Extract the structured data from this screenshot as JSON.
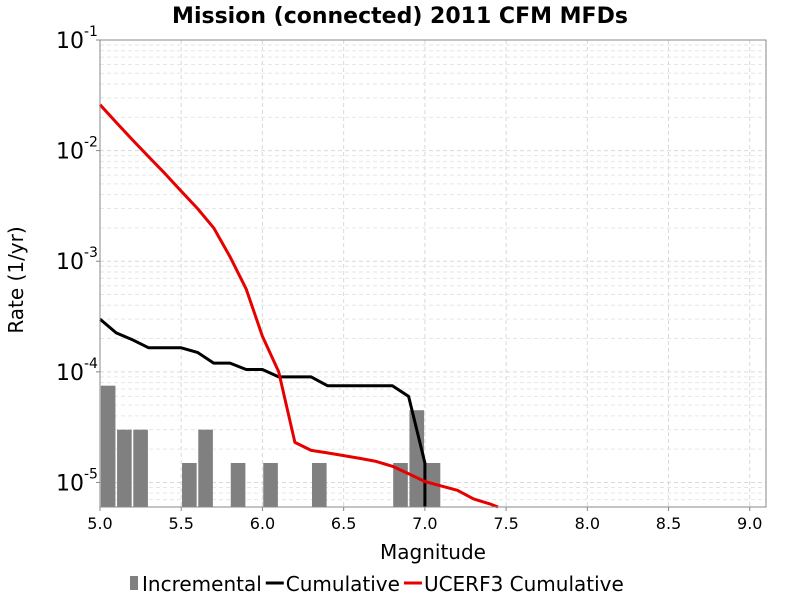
{
  "chart_data": {
    "type": "line",
    "title": "Mission (connected) 2011 CFM MFDs",
    "xlabel": "Magnitude",
    "ylabel": "Rate (1/yr)",
    "xlim": [
      5.0,
      9.1
    ],
    "ylim": [
      6e-06,
      0.1
    ],
    "y_scale": "log",
    "grid": true,
    "legend_position": "bottom",
    "x_ticks": [
      "5.0",
      "5.5",
      "6.0",
      "6.5",
      "7.0",
      "7.5",
      "8.0",
      "8.5",
      "9.0"
    ],
    "y_ticks": [
      {
        "base": "10",
        "exp": "-5",
        "value": 1e-05
      },
      {
        "base": "10",
        "exp": "-4",
        "value": 0.0001
      },
      {
        "base": "10",
        "exp": "-3",
        "value": 0.001
      },
      {
        "base": "10",
        "exp": "-2",
        "value": 0.01
      },
      {
        "base": "10",
        "exp": "-1",
        "value": 0.1
      }
    ],
    "series": [
      {
        "name": "Incremental",
        "kind": "bar",
        "color": "#808080",
        "bar_width": 0.09,
        "x": [
          5.05,
          5.15,
          5.25,
          5.55,
          5.65,
          5.85,
          6.05,
          6.35,
          6.85,
          6.95,
          7.05
        ],
        "y": [
          7.5e-05,
          3e-05,
          3e-05,
          1.5e-05,
          3e-05,
          1.5e-05,
          1.5e-05,
          1.5e-05,
          1.5e-05,
          4.5e-05,
          1.5e-05
        ]
      },
      {
        "name": "Cumulative",
        "kind": "line",
        "color": "#000000",
        "x": [
          5.0,
          5.1,
          5.2,
          5.3,
          5.4,
          5.5,
          5.6,
          5.7,
          5.8,
          5.9,
          6.0,
          6.1,
          6.2,
          6.3,
          6.4,
          6.5,
          6.6,
          6.7,
          6.8,
          6.9,
          7.0,
          7.0
        ],
        "y": [
          0.0003,
          0.000225,
          0.000195,
          0.000165,
          0.000165,
          0.000165,
          0.00015,
          0.00012,
          0.00012,
          0.000105,
          0.000105,
          9e-05,
          9e-05,
          9e-05,
          7.5e-05,
          7.5e-05,
          7.5e-05,
          7.5e-05,
          7.5e-05,
          6e-05,
          1.5e-05,
          6e-06
        ]
      },
      {
        "name": "UCERF3 Cumulative",
        "kind": "line",
        "color": "#e60000",
        "x": [
          5.0,
          5.1,
          5.2,
          5.3,
          5.4,
          5.5,
          5.6,
          5.7,
          5.8,
          5.9,
          6.0,
          6.1,
          6.2,
          6.3,
          6.4,
          6.5,
          6.6,
          6.7,
          6.8,
          6.9,
          7.0,
          7.1,
          7.2,
          7.3,
          7.4,
          7.45
        ],
        "y": [
          0.026,
          0.018,
          0.0125,
          0.0088,
          0.0062,
          0.0043,
          0.003,
          0.002,
          0.0011,
          0.00056,
          0.00021,
          0.0001,
          2.3e-05,
          1.95e-05,
          1.85e-05,
          1.75e-05,
          1.65e-05,
          1.55e-05,
          1.4e-05,
          1.2e-05,
          1.02e-05,
          9.3e-06,
          8.5e-06,
          7.1e-06,
          6.4e-06,
          6e-06
        ]
      }
    ]
  }
}
